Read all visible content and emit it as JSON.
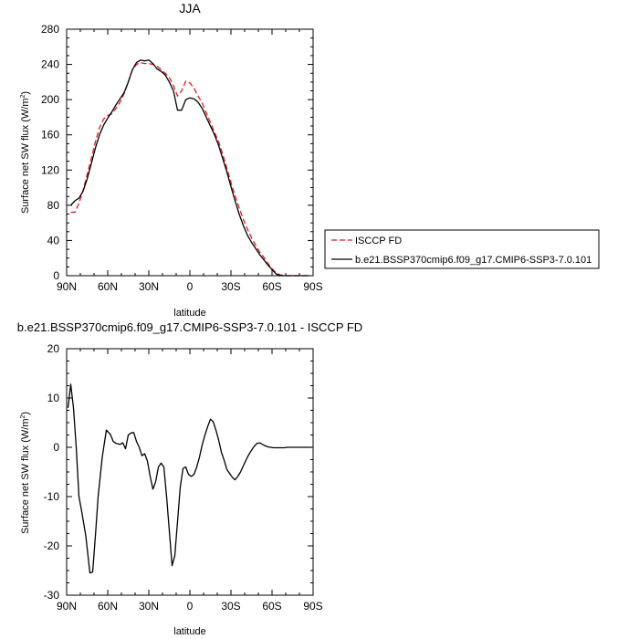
{
  "chart_data": [
    {
      "type": "line",
      "title": "JJA",
      "xlabel": "latitude",
      "ylabel": "Surface net SW flux (W/m",
      "ylabel_sup": "2",
      "ylabel_tail": ")",
      "xlim": [
        90,
        -90
      ],
      "ylim": [
        0,
        280
      ],
      "x_ticks": [
        90,
        60,
        30,
        0,
        -30,
        -60,
        -90
      ],
      "x_ticklabels": [
        "90N",
        "60N",
        "30N",
        "0",
        "30S",
        "60S",
        "90S"
      ],
      "y_ticks": [
        0,
        40,
        80,
        120,
        160,
        200,
        240,
        280
      ],
      "y_ticklabels": [
        "0",
        "40",
        "80",
        "120",
        "160",
        "200",
        "240",
        "280"
      ],
      "legend_position": "right",
      "series": [
        {
          "name": "ISCCP FD",
          "color": "#e31a1c",
          "dash": true,
          "x": [
            87,
            84,
            81,
            78,
            75,
            72,
            69,
            66,
            63,
            60,
            57,
            54,
            51,
            48,
            45,
            42,
            39,
            36,
            33,
            30,
            27,
            24,
            21,
            18,
            15,
            12,
            9,
            6,
            3,
            0,
            -3,
            -6,
            -9,
            -12,
            -15,
            -18,
            -21,
            -24,
            -27,
            -30,
            -33,
            -36,
            -39,
            -42,
            -45,
            -48,
            -51,
            -54,
            -57,
            -60,
            -63,
            -66,
            -69,
            -72,
            -75,
            -78,
            -81,
            -84,
            -87
          ],
          "y": [
            72,
            72,
            82,
            97,
            115,
            133,
            152,
            168,
            178,
            182,
            184,
            190,
            197,
            207,
            220,
            234,
            240,
            242,
            241,
            241,
            240,
            238,
            234,
            230,
            225,
            216,
            204,
            210,
            221,
            219,
            213,
            204,
            196,
            185,
            174,
            163,
            152,
            138,
            122,
            106,
            91,
            77,
            64,
            53,
            43,
            35,
            27,
            21,
            14,
            8,
            3,
            1,
            0,
            0,
            0,
            0,
            0,
            0,
            0
          ]
        },
        {
          "name": "b.e21.BSSP370cmip6.f09_g17.CMIP6-SSP3-7.0.101",
          "color": "#000000",
          "dash": false,
          "x": [
            87,
            84,
            81,
            78,
            75,
            72,
            69,
            66,
            63,
            60,
            57,
            54,
            51,
            48,
            45,
            42,
            39,
            36,
            33,
            30,
            27,
            24,
            21,
            18,
            15,
            12,
            9,
            6,
            3,
            0,
            -3,
            -6,
            -9,
            -12,
            -15,
            -18,
            -21,
            -24,
            -27,
            -30,
            -33,
            -36,
            -39,
            -42,
            -45,
            -48,
            -51,
            -54,
            -57,
            -60,
            -63,
            -66,
            -69,
            -72,
            -75,
            -78,
            -81,
            -84,
            -87
          ],
          "y": [
            80,
            85,
            88,
            96,
            110,
            127,
            145,
            160,
            171,
            179,
            186,
            194,
            201,
            208,
            220,
            234,
            242,
            245,
            244,
            245,
            241,
            235,
            232,
            228,
            220,
            210,
            188,
            188,
            200,
            202,
            201,
            197,
            190,
            180,
            170,
            160,
            148,
            133,
            118,
            101,
            85,
            70,
            57,
            46,
            38,
            31,
            24,
            18,
            12,
            7,
            2,
            0,
            0,
            0,
            0,
            0,
            0,
            0,
            0
          ]
        }
      ]
    },
    {
      "type": "line",
      "title": "b.e21.BSSP370cmip6.f09_g17.CMIP6-SSP3-7.0.101 - ISCCP FD",
      "xlabel": "latitude",
      "ylabel": "Surface net SW flux (W/m",
      "ylabel_sup": "2",
      "ylabel_tail": ")",
      "xlim": [
        90,
        -90
      ],
      "ylim": [
        -30,
        20
      ],
      "x_ticks": [
        90,
        60,
        30,
        0,
        -30,
        -60,
        -90
      ],
      "x_ticklabels": [
        "90N",
        "60N",
        "30N",
        "0",
        "30S",
        "60S",
        "90S"
      ],
      "y_ticks": [
        -30,
        -20,
        -10,
        0,
        10,
        20
      ],
      "y_ticklabels": [
        "-30",
        "-20",
        "-10",
        "0",
        "10",
        "20"
      ],
      "series": [
        {
          "color": "#000000",
          "dash": false,
          "x": [
            89,
            87,
            85,
            83,
            81,
            79,
            76,
            73,
            71,
            69,
            67,
            64,
            61,
            58,
            56,
            54,
            51,
            49,
            47,
            45,
            43,
            41,
            39,
            37,
            35,
            33,
            31,
            29,
            27,
            25,
            23,
            21,
            19,
            17,
            15,
            13,
            11,
            9,
            7,
            5,
            3,
            1,
            -1,
            -3,
            -5,
            -7,
            -9,
            -11,
            -13,
            -15,
            -17,
            -19,
            -21,
            -23,
            -25,
            -27,
            -29,
            -31,
            -33,
            -35,
            -37,
            -39,
            -41,
            -43,
            -45,
            -47,
            -49,
            -51,
            -53,
            -55,
            -57,
            -59,
            -61,
            -63,
            -65,
            -67,
            -69,
            -71,
            -73,
            -75,
            -77,
            -79,
            -81,
            -83,
            -85,
            -87,
            -89
          ],
          "y": [
            8,
            12.8,
            8,
            0,
            -10,
            -13,
            -18,
            -25.5,
            -25.3,
            -18,
            -10,
            -2,
            3.5,
            2.6,
            1.2,
            0.8,
            0.6,
            0.9,
            -0.3,
            2.5,
            2.9,
            3.0,
            1.2,
            0,
            -1.7,
            -1.3,
            -2.8,
            -5.9,
            -8.5,
            -7,
            -4,
            -3.2,
            -4,
            -10,
            -17,
            -24,
            -22,
            -15,
            -8,
            -4.3,
            -4,
            -5.5,
            -5.9,
            -5.5,
            -4,
            -2,
            0.5,
            2.5,
            4.2,
            5.7,
            5.2,
            3.5,
            1.5,
            -1,
            -2.6,
            -4.5,
            -5.3,
            -6.1,
            -6.6,
            -5.9,
            -5,
            -3.8,
            -2.6,
            -1.5,
            -0.6,
            0.2,
            0.8,
            0.9,
            0.6,
            0.3,
            0.1,
            0,
            -0.1,
            -0.1,
            -0.1,
            -0.1,
            -0.1,
            0,
            0,
            0,
            0,
            0,
            0,
            0,
            0,
            0,
            0
          ]
        }
      ]
    }
  ]
}
